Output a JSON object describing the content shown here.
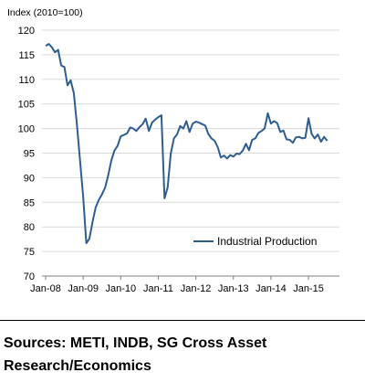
{
  "chart_data": {
    "type": "line",
    "ylabel": "Index (2010=100)",
    "xlabel": "",
    "ylim": [
      70,
      120
    ],
    "yticks": [
      70,
      75,
      80,
      85,
      90,
      95,
      100,
      105,
      110,
      115,
      120
    ],
    "xticks": [
      "Jan-08",
      "Jan-09",
      "Jan-10",
      "Jan-11",
      "Jan-12",
      "Jan-13",
      "Jan-14",
      "Jan-15"
    ],
    "grid": "horizontal",
    "legend_position": "bottom-right",
    "series": [
      {
        "name": "Industrial Production",
        "color": "#2e5d92",
        "start": "Jan-08",
        "frequency": "monthly",
        "values": [
          116.8,
          117.2,
          116.5,
          115.5,
          116.0,
          112.8,
          112.5,
          108.8,
          109.8,
          107.2,
          100.8,
          93.5,
          86.0,
          76.7,
          77.6,
          81.0,
          84.0,
          85.5,
          86.6,
          88.0,
          90.5,
          93.5,
          95.5,
          96.5,
          98.4,
          98.7,
          99.0,
          100.2,
          100.0,
          99.5,
          100.3,
          100.9,
          102.0,
          99.5,
          101.2,
          101.8,
          102.3,
          102.7,
          85.8,
          88.0,
          95.0,
          98.0,
          98.8,
          100.5,
          100.0,
          101.5,
          99.3,
          101.0,
          101.4,
          101.2,
          100.9,
          100.6,
          98.9,
          98.0,
          97.5,
          96.2,
          94.1,
          94.5,
          93.9,
          94.6,
          94.3,
          94.9,
          94.8,
          95.5,
          96.9,
          95.6,
          97.7,
          98.0,
          99.1,
          99.5,
          100.0,
          103.1,
          101.0,
          101.5,
          101.1,
          99.3,
          99.6,
          97.8,
          97.7,
          97.1,
          98.2,
          98.3,
          98.0,
          98.1,
          102.1,
          98.9,
          98.0,
          98.8,
          97.3,
          98.3,
          97.5
        ]
      }
    ]
  },
  "footer": {
    "source_text": "Sources: METI, INDB, SG Cross Asset Research/Economics"
  }
}
